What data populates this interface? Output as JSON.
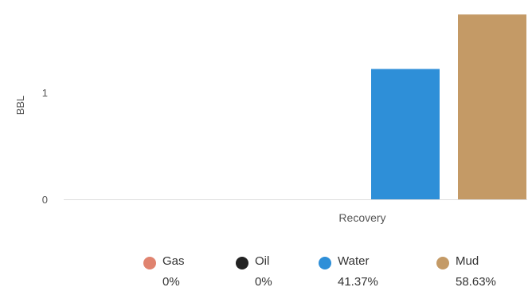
{
  "chart_data": {
    "type": "bar",
    "title": "",
    "xlabel": "",
    "ylabel": "BBL",
    "categories": [
      "Recovery"
    ],
    "yticks": [
      "0",
      "1"
    ],
    "ylim": [
      0,
      1.9
    ],
    "grid": false,
    "legend_placement": "bottom",
    "series": [
      {
        "name": "Gas",
        "values": [
          0
        ],
        "percent": "0%",
        "color": "#e0836f"
      },
      {
        "name": "Oil",
        "values": [
          0
        ],
        "percent": "0%",
        "color": "#222222"
      },
      {
        "name": "Water",
        "values": [
          1.22
        ],
        "percent": "41.37%",
        "color": "#2e8fd8"
      },
      {
        "name": "Mud",
        "values": [
          1.73
        ],
        "percent": "58.63%",
        "color": "#c49a66"
      }
    ]
  }
}
